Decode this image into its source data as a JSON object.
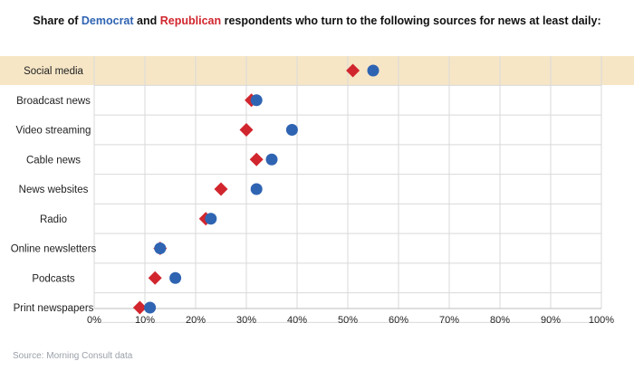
{
  "chart_data": {
    "type": "dot",
    "title": {
      "prefix": "Share of ",
      "democrat": "Democrat",
      "middle": " and ",
      "republican": "Republican",
      "suffix": " respondents who turn to the following sources for news at least daily:"
    },
    "categories": [
      "Social media",
      "Broadcast news",
      "Video streaming",
      "Cable news",
      "News websites",
      "Radio",
      "Online newsletters",
      "Podcasts",
      "Print newspapers"
    ],
    "highlighted_category": "Social media",
    "series": [
      {
        "name": "Democrat",
        "marker": "circle",
        "color": "#2f64b2",
        "values": [
          55,
          32,
          39,
          35,
          32,
          23,
          13,
          16,
          11
        ]
      },
      {
        "name": "Republican",
        "marker": "diamond",
        "color": "#d1262e",
        "values": [
          51,
          31,
          30,
          32,
          25,
          22,
          13,
          12,
          9
        ]
      }
    ],
    "x_ticks": [
      "0%",
      "10%",
      "20%",
      "30%",
      "40%",
      "50%",
      "60%",
      "70%",
      "80%",
      "90%",
      "100%"
    ],
    "xlim": [
      0,
      100
    ],
    "grid": true,
    "highlight_color": "#f6e6c6",
    "source": "Source: Morning Consult data"
  }
}
